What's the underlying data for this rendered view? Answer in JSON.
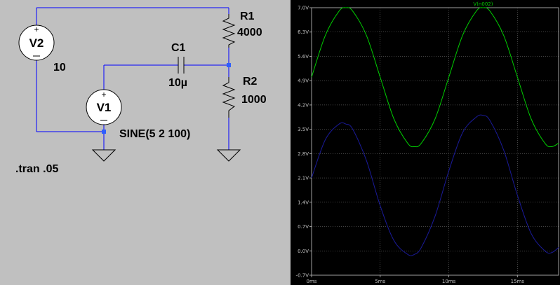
{
  "schematic": {
    "components": {
      "r1": {
        "name": "R1",
        "value": "4000"
      },
      "r2": {
        "name": "R2",
        "value": "1000"
      },
      "c1": {
        "name": "C1",
        "value": "10µ"
      },
      "v1": {
        "name": "V1",
        "value": "SINE(5 2 100)"
      },
      "v2": {
        "name": "V2",
        "value": "10"
      }
    },
    "directive": ".tran .05",
    "wire_color": "#0000ff",
    "node_color": "#2f5fff",
    "background_color": "#c0c0c0"
  },
  "waveform_viewer": {
    "background_color": "#000000",
    "trace_labels": [
      "V(n002)"
    ],
    "y_tick_labels": [
      "7.0V",
      "6.3V",
      "5.6V",
      "4.9V",
      "4.2V",
      "3.5V",
      "2.8V",
      "2.1V",
      "1.4V",
      "0.7V",
      "0.0V",
      "-0.7V"
    ],
    "x_tick_labels": [
      "0ms",
      "5ms",
      "10ms",
      "15ms"
    ]
  },
  "chart_data": {
    "type": "line",
    "title": "",
    "xlabel": "",
    "ylabel": "",
    "x_unit": "ms",
    "y_unit": "V",
    "xlim": [
      0,
      18
    ],
    "ylim": [
      -0.7,
      7.0
    ],
    "x_ticks": [
      0,
      5,
      10,
      15
    ],
    "y_ticks": [
      7.0,
      6.3,
      5.6,
      4.9,
      4.2,
      3.5,
      2.8,
      2.1,
      1.4,
      0.7,
      0.0,
      -0.7
    ],
    "grid": true,
    "series": [
      {
        "name": "V(n002)",
        "color": "#00cc00",
        "x": [
          0,
          1,
          2,
          2.5,
          3,
          4,
          5,
          6,
          7,
          7.5,
          8,
          9,
          10,
          11,
          12,
          12.5,
          13,
          14,
          15,
          16,
          17,
          17.5,
          18
        ],
        "y": [
          5.0,
          6.2,
          6.9,
          7.0,
          6.9,
          6.2,
          5.0,
          3.8,
          3.1,
          3.0,
          3.1,
          3.8,
          5.0,
          6.2,
          6.9,
          7.0,
          6.9,
          6.2,
          5.0,
          3.8,
          3.1,
          3.0,
          3.1
        ]
      },
      {
        "color": "#1a1a99",
        "x": [
          0,
          1,
          2,
          2.5,
          3,
          4,
          5,
          6,
          7,
          7.5,
          8,
          9,
          10,
          11,
          12,
          12.5,
          13,
          14,
          15,
          16,
          17,
          17.5,
          18
        ],
        "y": [
          2.1,
          3.2,
          3.65,
          3.65,
          3.5,
          2.6,
          1.3,
          0.3,
          -0.1,
          -0.1,
          0.1,
          1.0,
          2.3,
          3.4,
          3.85,
          3.9,
          3.75,
          2.9,
          1.6,
          0.5,
          0.0,
          -0.05,
          0.1
        ]
      }
    ]
  }
}
